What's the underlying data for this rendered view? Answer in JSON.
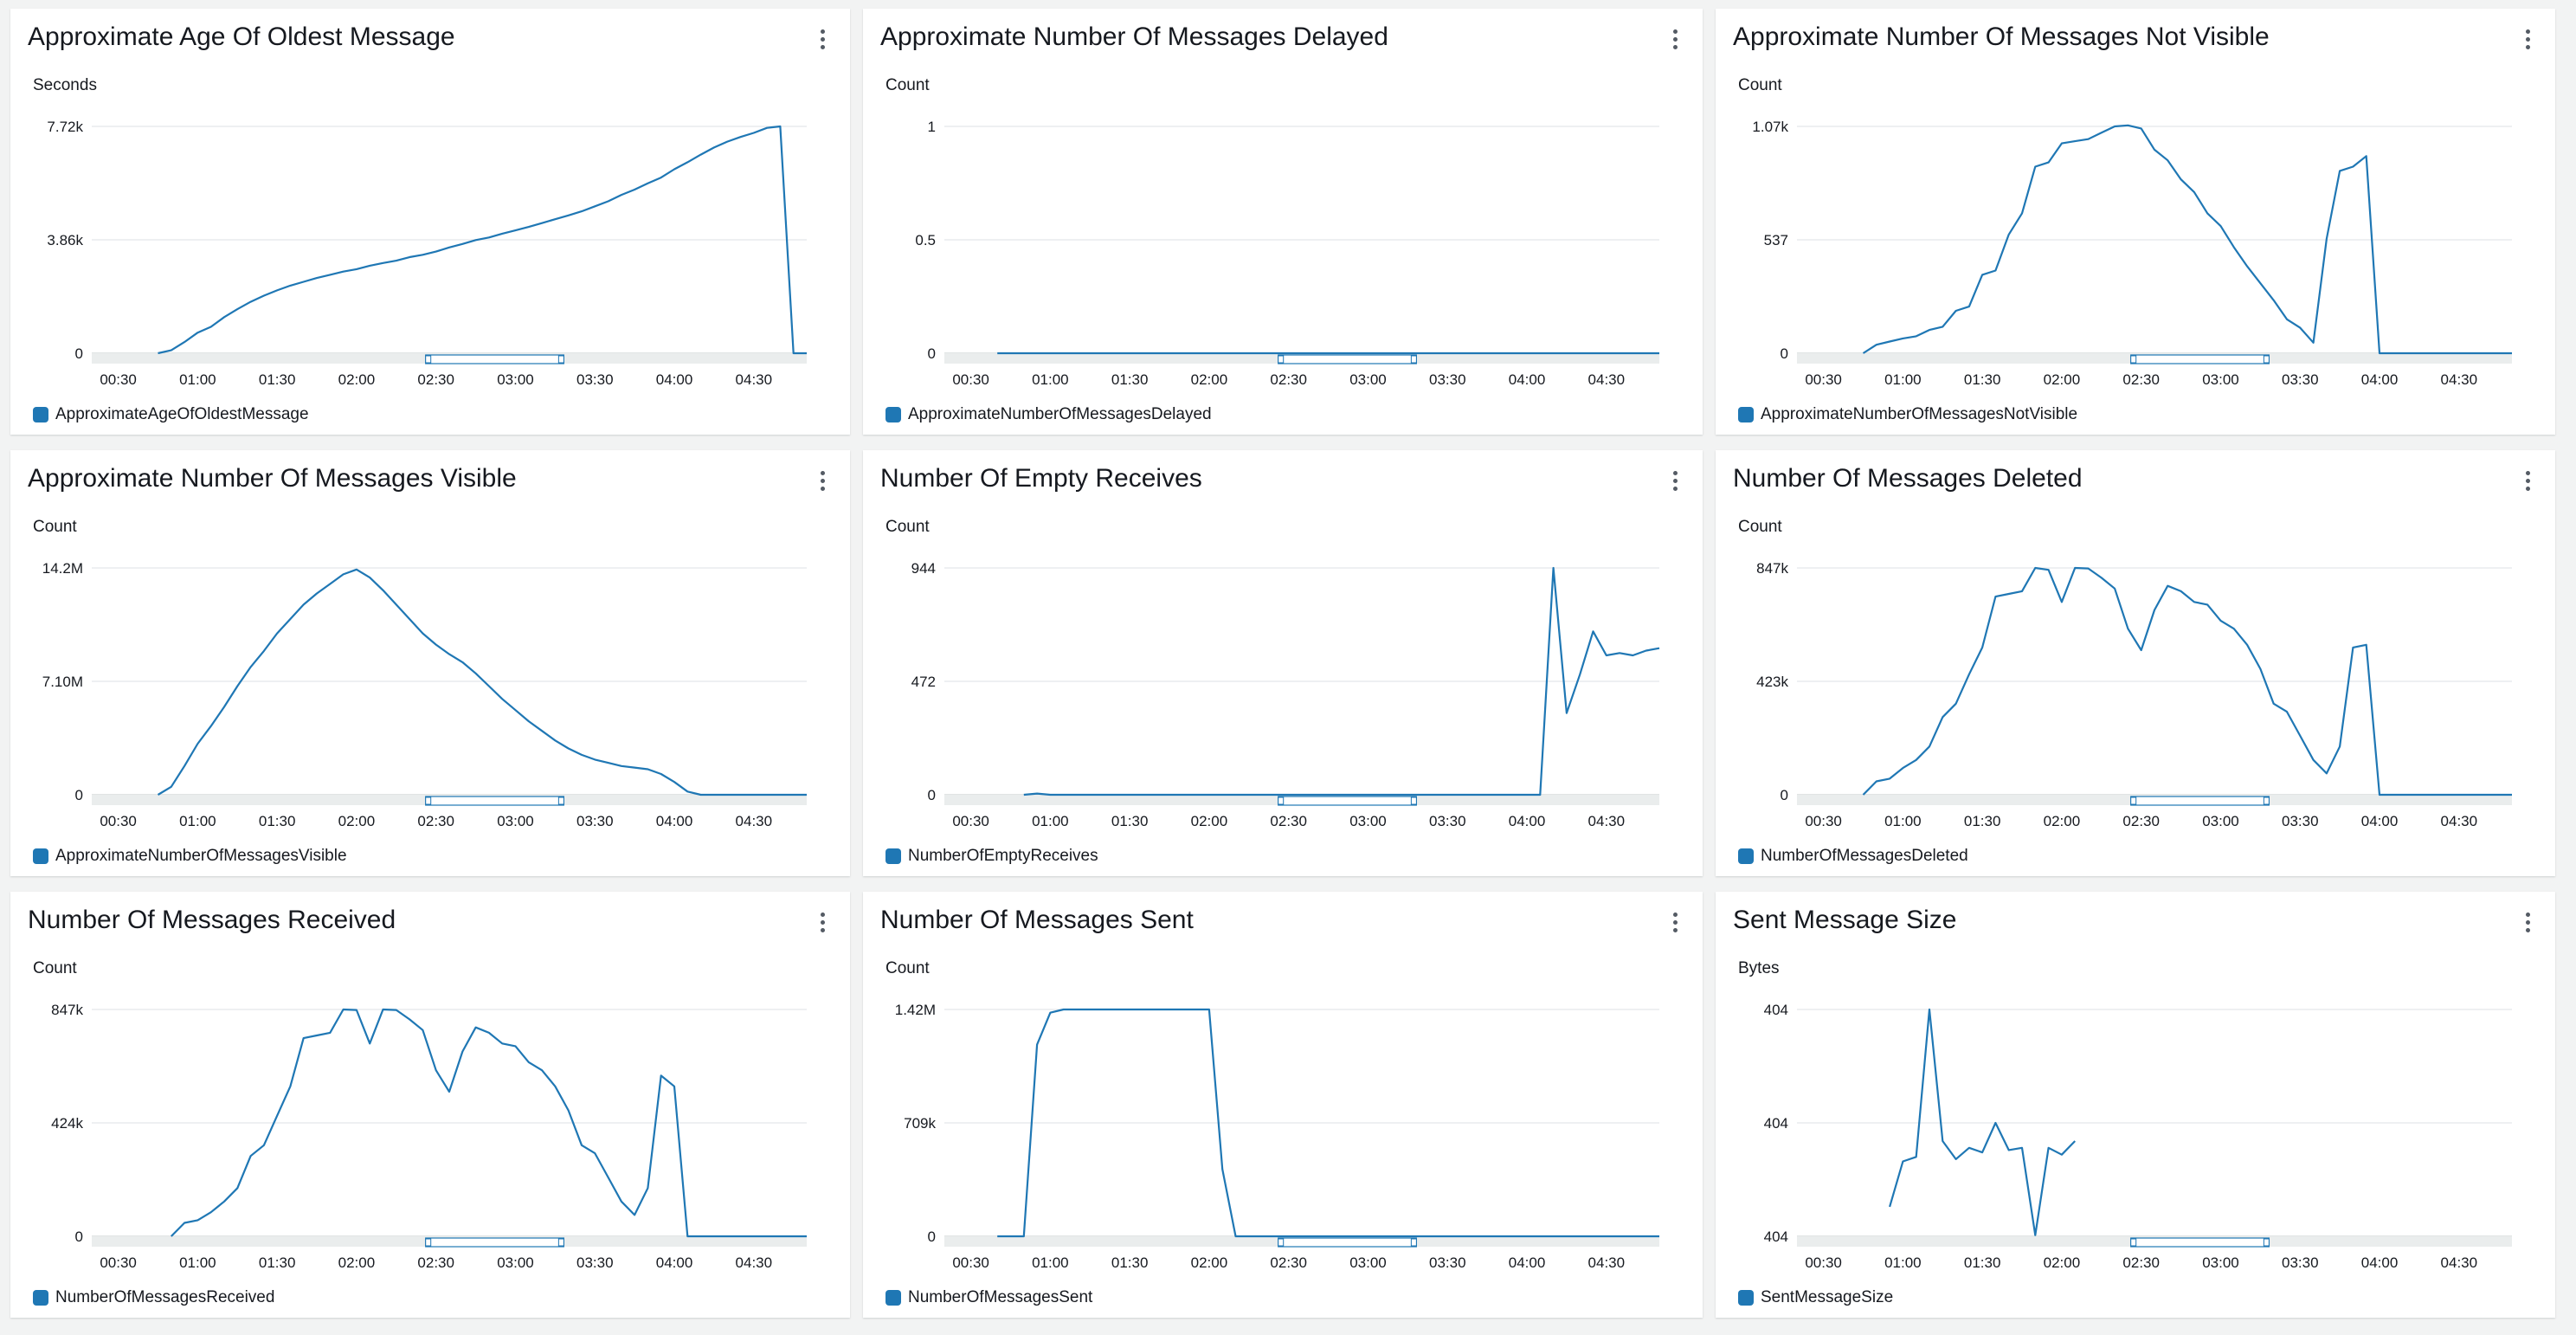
{
  "dashboard": {
    "widgets": [
      {
        "id": "w1",
        "title": "Approximate Age Of Oldest Message",
        "unit": "Seconds",
        "legend": "ApproximateAgeOfOldestMessage",
        "yticks": [
          "7.72k",
          "3.86k",
          "0"
        ]
      },
      {
        "id": "w2",
        "title": "Approximate Number Of Messages Delayed",
        "unit": "Count",
        "legend": "ApproximateNumberOfMessagesDelayed",
        "yticks": [
          "1",
          "0.5",
          "0"
        ]
      },
      {
        "id": "w3",
        "title": "Approximate Number Of Messages Not Visible",
        "unit": "Count",
        "legend": "ApproximateNumberOfMessagesNotVisible",
        "yticks": [
          "1.07k",
          "537",
          "0"
        ]
      },
      {
        "id": "w4",
        "title": "Approximate Number Of Messages Visible",
        "unit": "Count",
        "legend": "ApproximateNumberOfMessagesVisible",
        "yticks": [
          "14.2M",
          "7.10M",
          "0"
        ]
      },
      {
        "id": "w5",
        "title": "Number Of Empty Receives",
        "unit": "Count",
        "legend": "NumberOfEmptyReceives",
        "yticks": [
          "944",
          "472",
          "0"
        ]
      },
      {
        "id": "w6",
        "title": "Number Of Messages Deleted",
        "unit": "Count",
        "legend": "NumberOfMessagesDeleted",
        "yticks": [
          "847k",
          "423k",
          "0"
        ]
      },
      {
        "id": "w7",
        "title": "Number Of Messages Received",
        "unit": "Count",
        "legend": "NumberOfMessagesReceived",
        "yticks": [
          "847k",
          "424k",
          "0"
        ]
      },
      {
        "id": "w8",
        "title": "Number Of Messages Sent",
        "unit": "Count",
        "legend": "NumberOfMessagesSent",
        "yticks": [
          "1.42M",
          "709k",
          "0"
        ]
      },
      {
        "id": "w9",
        "title": "Sent Message Size",
        "unit": "Bytes",
        "legend": "SentMessageSize",
        "yticks": [
          "404",
          "404",
          "404"
        ]
      }
    ]
  },
  "colors": {
    "series": "#1f77b4",
    "grid": "#e9ebed",
    "axis": "#d5dbdb",
    "brush_fill": "#f2f3f3"
  },
  "chart_data": [
    {
      "type": "line",
      "title": "Approximate Age Of Oldest Message",
      "ylabel": "Seconds",
      "x_ticks": [
        "00:30",
        "01:00",
        "01:30",
        "02:00",
        "02:30",
        "03:00",
        "03:30",
        "04:00",
        "04:30"
      ],
      "x_range": [
        "00:20",
        "04:50"
      ],
      "ylim": [
        0,
        7720
      ],
      "series": [
        {
          "name": "ApproximateAgeOfOldestMessage",
          "x": [
            "00:45",
            "00:50",
            "00:55",
            "01:00",
            "01:05",
            "01:10",
            "01:15",
            "01:20",
            "01:25",
            "01:30",
            "01:35",
            "01:40",
            "01:45",
            "01:50",
            "01:55",
            "02:00",
            "02:05",
            "02:10",
            "02:15",
            "02:20",
            "02:25",
            "02:30",
            "02:35",
            "02:40",
            "02:45",
            "02:50",
            "02:55",
            "03:00",
            "03:05",
            "03:10",
            "03:15",
            "03:20",
            "03:25",
            "03:30",
            "03:35",
            "03:40",
            "03:45",
            "03:50",
            "03:55",
            "04:00",
            "04:05",
            "04:10",
            "04:15",
            "04:20",
            "04:25",
            "04:30",
            "04:35",
            "04:40",
            "04:45",
            "04:50"
          ],
          "y": [
            0,
            100,
            380,
            700,
            900,
            1230,
            1500,
            1750,
            1960,
            2140,
            2300,
            2430,
            2560,
            2670,
            2780,
            2860,
            2980,
            3070,
            3150,
            3270,
            3350,
            3460,
            3600,
            3720,
            3850,
            3940,
            4070,
            4180,
            4300,
            4430,
            4560,
            4690,
            4830,
            5000,
            5170,
            5390,
            5570,
            5780,
            5980,
            6260,
            6500,
            6760,
            7000,
            7200,
            7360,
            7500,
            7670,
            7720,
            0,
            0
          ]
        }
      ]
    },
    {
      "type": "line",
      "title": "Approximate Number Of Messages Delayed",
      "ylabel": "Count",
      "x_ticks": [
        "00:30",
        "01:00",
        "01:30",
        "02:00",
        "02:30",
        "03:00",
        "03:30",
        "04:00",
        "04:30"
      ],
      "x_range": [
        "00:20",
        "04:50"
      ],
      "ylim": [
        0,
        1
      ],
      "series": [
        {
          "name": "ApproximateNumberOfMessagesDelayed",
          "x": [
            "00:40",
            "04:50"
          ],
          "y": [
            0,
            0
          ]
        }
      ]
    },
    {
      "type": "line",
      "title": "Approximate Number Of Messages Not Visible",
      "ylabel": "Count",
      "x_ticks": [
        "00:30",
        "01:00",
        "01:30",
        "02:00",
        "02:30",
        "03:00",
        "03:30",
        "04:00",
        "04:30"
      ],
      "x_range": [
        "00:20",
        "04:50"
      ],
      "ylim": [
        0,
        1070
      ],
      "series": [
        {
          "name": "ApproximateNumberOfMessagesNotVisible",
          "x": [
            "00:45",
            "00:50",
            "00:55",
            "01:00",
            "01:05",
            "01:10",
            "01:15",
            "01:20",
            "01:25",
            "01:30",
            "01:35",
            "01:40",
            "01:45",
            "01:50",
            "01:55",
            "02:00",
            "02:05",
            "02:10",
            "02:15",
            "02:20",
            "02:25",
            "02:30",
            "02:35",
            "02:40",
            "02:45",
            "02:50",
            "02:55",
            "03:00",
            "03:05",
            "03:10",
            "03:15",
            "03:20",
            "03:25",
            "03:30",
            "03:35",
            "03:40",
            "03:45",
            "03:50",
            "03:55",
            "04:00",
            "04:05",
            "04:10",
            "04:15",
            "04:20",
            "04:25",
            "04:30",
            "04:35",
            "04:40",
            "04:45",
            "04:50"
          ],
          "y": [
            0,
            40,
            55,
            70,
            80,
            110,
            125,
            200,
            220,
            370,
            390,
            560,
            660,
            880,
            900,
            990,
            1000,
            1010,
            1040,
            1070,
            1075,
            1060,
            960,
            910,
            820,
            760,
            660,
            600,
            500,
            410,
            330,
            250,
            160,
            120,
            50,
            540,
            860,
            880,
            930,
            0,
            0,
            0,
            0,
            0,
            0,
            0,
            0,
            0,
            0,
            0
          ]
        }
      ]
    },
    {
      "type": "line",
      "title": "Approximate Number Of Messages Visible",
      "ylabel": "Count",
      "x_ticks": [
        "00:30",
        "01:00",
        "01:30",
        "02:00",
        "02:30",
        "03:00",
        "03:30",
        "04:00",
        "04:30"
      ],
      "x_range": [
        "00:20",
        "04:50"
      ],
      "ylim": [
        0,
        14200000
      ],
      "series": [
        {
          "name": "ApproximateNumberOfMessagesVisible",
          "x": [
            "00:45",
            "00:50",
            "00:55",
            "01:00",
            "01:05",
            "01:10",
            "01:15",
            "01:20",
            "01:25",
            "01:30",
            "01:35",
            "01:40",
            "01:45",
            "01:50",
            "01:55",
            "02:00",
            "02:05",
            "02:10",
            "02:15",
            "02:20",
            "02:25",
            "02:30",
            "02:35",
            "02:40",
            "02:45",
            "02:50",
            "02:55",
            "03:00",
            "03:05",
            "03:10",
            "03:15",
            "03:20",
            "03:25",
            "03:30",
            "03:35",
            "03:40",
            "03:45",
            "03:50",
            "03:55",
            "04:00",
            "04:05",
            "04:10",
            "04:15",
            "04:20",
            "04:25",
            "04:30",
            "04:35",
            "04:40",
            "04:45",
            "04:50"
          ],
          "y": [
            0,
            500000,
            1800000,
            3200000,
            4300000,
            5500000,
            6800000,
            8000000,
            9000000,
            10100000,
            11000000,
            11900000,
            12600000,
            13200000,
            13800000,
            14100000,
            13600000,
            12800000,
            11900000,
            11000000,
            10100000,
            9400000,
            8800000,
            8300000,
            7600000,
            6800000,
            6000000,
            5300000,
            4600000,
            4000000,
            3400000,
            2900000,
            2500000,
            2200000,
            2000000,
            1800000,
            1700000,
            1600000,
            1300000,
            800000,
            200000,
            0,
            0,
            0,
            0,
            0,
            0,
            0,
            0,
            0
          ]
        }
      ]
    },
    {
      "type": "line",
      "title": "Number Of Empty Receives",
      "ylabel": "Count",
      "x_ticks": [
        "00:30",
        "01:00",
        "01:30",
        "02:00",
        "02:30",
        "03:00",
        "03:30",
        "04:00",
        "04:30"
      ],
      "x_range": [
        "00:20",
        "04:50"
      ],
      "ylim": [
        0,
        944
      ],
      "series": [
        {
          "name": "NumberOfEmptyReceives",
          "x": [
            "00:50",
            "00:55",
            "01:00",
            "01:05",
            "03:00",
            "04:00",
            "04:05",
            "04:10",
            "04:15",
            "04:20",
            "04:25",
            "04:30",
            "04:35",
            "04:40",
            "04:45",
            "04:50"
          ],
          "y": [
            0,
            5,
            0,
            0,
            0,
            0,
            0,
            944,
            340,
            500,
            680,
            580,
            590,
            580,
            600,
            610
          ]
        }
      ]
    },
    {
      "type": "line",
      "title": "Number Of Messages Deleted",
      "ylabel": "Count",
      "x_ticks": [
        "00:30",
        "01:00",
        "01:30",
        "02:00",
        "02:30",
        "03:00",
        "03:30",
        "04:00",
        "04:30"
      ],
      "x_range": [
        "00:20",
        "04:50"
      ],
      "ylim": [
        0,
        847000
      ],
      "series": [
        {
          "name": "NumberOfMessagesDeleted",
          "x": [
            "00:45",
            "00:50",
            "00:55",
            "01:00",
            "01:05",
            "01:10",
            "01:15",
            "01:20",
            "01:25",
            "01:30",
            "01:35",
            "01:40",
            "01:45",
            "01:50",
            "01:55",
            "02:00",
            "02:05",
            "02:10",
            "02:15",
            "02:20",
            "02:25",
            "02:30",
            "02:35",
            "02:40",
            "02:45",
            "02:50",
            "02:55",
            "03:00",
            "03:05",
            "03:10",
            "03:15",
            "03:20",
            "03:25",
            "03:30",
            "03:35",
            "03:40",
            "03:45",
            "03:50",
            "03:55",
            "04:00",
            "04:05",
            "04:10",
            "04:15",
            "04:20",
            "04:25",
            "04:30",
            "04:35",
            "04:40",
            "04:45",
            "04:50"
          ],
          "y": [
            0,
            50000,
            60000,
            100000,
            130000,
            180000,
            290000,
            340000,
            450000,
            550000,
            740000,
            750000,
            760000,
            847000,
            840000,
            720000,
            847000,
            845000,
            810000,
            770000,
            620000,
            540000,
            690000,
            780000,
            760000,
            720000,
            710000,
            650000,
            620000,
            560000,
            470000,
            340000,
            310000,
            220000,
            130000,
            80000,
            180000,
            550000,
            560000,
            0,
            0,
            0,
            0,
            0,
            0,
            0,
            0,
            0,
            0,
            0
          ]
        }
      ]
    },
    {
      "type": "line",
      "title": "Number Of Messages Received",
      "ylabel": "Count",
      "x_ticks": [
        "00:30",
        "01:00",
        "01:30",
        "02:00",
        "02:30",
        "03:00",
        "03:30",
        "04:00",
        "04:30"
      ],
      "x_range": [
        "00:20",
        "04:50"
      ],
      "ylim": [
        0,
        847000
      ],
      "series": [
        {
          "name": "NumberOfMessagesReceived",
          "x": [
            "00:50",
            "00:55",
            "01:00",
            "01:05",
            "01:10",
            "01:15",
            "01:20",
            "01:25",
            "01:30",
            "01:35",
            "01:40",
            "01:45",
            "01:50",
            "01:55",
            "02:00",
            "02:05",
            "02:10",
            "02:15",
            "02:20",
            "02:25",
            "02:30",
            "02:35",
            "02:40",
            "02:45",
            "02:50",
            "02:55",
            "03:00",
            "03:05",
            "03:10",
            "03:15",
            "03:20",
            "03:25",
            "03:30",
            "03:35",
            "03:40",
            "03:45",
            "03:50",
            "03:55",
            "04:00",
            "04:05",
            "04:10",
            "04:15",
            "04:20",
            "04:25",
            "04:30",
            "04:35",
            "04:40",
            "04:45",
            "04:50"
          ],
          "y": [
            0,
            50000,
            60000,
            90000,
            130000,
            180000,
            300000,
            340000,
            450000,
            560000,
            740000,
            750000,
            760000,
            847000,
            845000,
            720000,
            847000,
            845000,
            810000,
            770000,
            620000,
            540000,
            690000,
            780000,
            760000,
            720000,
            710000,
            650000,
            620000,
            560000,
            470000,
            340000,
            310000,
            220000,
            130000,
            80000,
            180000,
            600000,
            560000,
            0,
            0,
            0,
            0,
            0,
            0,
            0,
            0,
            0,
            0
          ]
        }
      ]
    },
    {
      "type": "line",
      "title": "Number Of Messages Sent",
      "ylabel": "Count",
      "x_ticks": [
        "00:30",
        "01:00",
        "01:30",
        "02:00",
        "02:30",
        "03:00",
        "03:30",
        "04:00",
        "04:30"
      ],
      "x_range": [
        "00:20",
        "04:50"
      ],
      "ylim": [
        0,
        1420000
      ],
      "series": [
        {
          "name": "NumberOfMessagesSent",
          "x": [
            "00:40",
            "00:45",
            "00:50",
            "00:55",
            "01:00",
            "01:05",
            "01:10",
            "01:15",
            "01:20",
            "01:25",
            "01:30",
            "01:35",
            "01:40",
            "01:45",
            "01:50",
            "01:55",
            "02:00",
            "02:05",
            "02:10",
            "02:15",
            "02:20",
            "02:30",
            "03:00",
            "03:30",
            "04:00",
            "04:30",
            "04:50"
          ],
          "y": [
            0,
            0,
            0,
            1200000,
            1400000,
            1420000,
            1420000,
            1420000,
            1420000,
            1420000,
            1420000,
            1420000,
            1420000,
            1420000,
            1420000,
            1420000,
            1420000,
            420000,
            0,
            0,
            0,
            0,
            0,
            0,
            0,
            0,
            0
          ]
        }
      ]
    },
    {
      "type": "line",
      "title": "Sent Message Size",
      "ylabel": "Bytes",
      "x_ticks": [
        "00:30",
        "01:00",
        "01:30",
        "02:00",
        "02:30",
        "03:00",
        "03:30",
        "04:00",
        "04:30"
      ],
      "x_range": [
        "00:20",
        "04:50"
      ],
      "ylim": [
        403.99,
        404.01
      ],
      "series": [
        {
          "name": "SentMessageSize",
          "x": [
            "00:55",
            "01:00",
            "01:05",
            "01:10",
            "01:15",
            "01:20",
            "01:25",
            "01:30",
            "01:35",
            "01:40",
            "01:45",
            "01:50",
            "01:55",
            "02:00",
            "02:05"
          ],
          "y": [
            403.9926,
            403.9966,
            403.997,
            404.01,
            403.9984,
            403.9968,
            403.9978,
            403.9974,
            404.0,
            403.9976,
            403.9978,
            403.9901,
            403.9978,
            403.9972,
            403.9984
          ]
        }
      ]
    }
  ]
}
